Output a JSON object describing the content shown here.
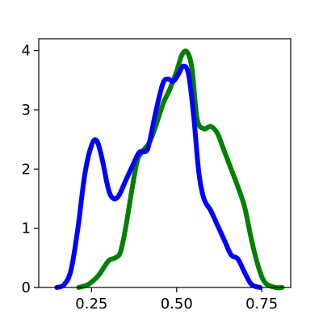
{
  "chart_data": {
    "type": "line",
    "title": "",
    "xlabel": "",
    "ylabel": "",
    "xlim": [
      0.095,
      0.835
    ],
    "ylim": [
      0,
      4.2
    ],
    "grid": false,
    "xticks": [
      {
        "value": 0.25,
        "label": "0.25"
      },
      {
        "value": 0.5,
        "label": "0.50"
      },
      {
        "value": 0.75,
        "label": "0.75"
      }
    ],
    "yticks": [
      {
        "value": 0,
        "label": "0"
      },
      {
        "value": 1,
        "label": "1"
      },
      {
        "value": 2,
        "label": "2"
      },
      {
        "value": 3,
        "label": "3"
      },
      {
        "value": 4,
        "label": "4"
      }
    ],
    "series": [
      {
        "color": "#008000",
        "x": [
          0.212,
          0.24,
          0.27,
          0.3,
          0.32,
          0.335,
          0.35,
          0.37,
          0.385,
          0.4,
          0.42,
          0.44,
          0.46,
          0.48,
          0.5,
          0.515,
          0.53,
          0.545,
          0.56,
          0.58,
          0.6,
          0.62,
          0.64,
          0.66,
          0.68,
          0.7,
          0.72,
          0.74,
          0.76,
          0.79,
          0.81
        ],
        "y": [
          0.0,
          0.05,
          0.2,
          0.45,
          0.5,
          0.6,
          1.0,
          1.7,
          2.15,
          2.3,
          2.45,
          2.75,
          3.1,
          3.35,
          3.65,
          3.92,
          3.98,
          3.7,
          2.85,
          2.68,
          2.72,
          2.6,
          2.3,
          2.0,
          1.7,
          1.35,
          0.8,
          0.35,
          0.08,
          0.0,
          0.0
        ]
      },
      {
        "color": "#0000ff",
        "x": [
          0.148,
          0.17,
          0.19,
          0.21,
          0.23,
          0.25,
          0.265,
          0.28,
          0.3,
          0.315,
          0.33,
          0.35,
          0.37,
          0.39,
          0.41,
          0.42,
          0.44,
          0.46,
          0.475,
          0.49,
          0.505,
          0.52,
          0.535,
          0.55,
          0.565,
          0.58,
          0.6,
          0.62,
          0.64,
          0.66,
          0.68,
          0.7,
          0.72,
          0.745
        ],
        "y": [
          0.0,
          0.05,
          0.3,
          1.0,
          1.9,
          2.4,
          2.48,
          2.2,
          1.65,
          1.5,
          1.55,
          1.8,
          2.05,
          2.28,
          2.3,
          2.45,
          3.0,
          3.45,
          3.52,
          3.48,
          3.6,
          3.74,
          3.6,
          2.9,
          1.95,
          1.5,
          1.3,
          1.05,
          0.8,
          0.55,
          0.48,
          0.25,
          0.05,
          0.0
        ]
      }
    ]
  }
}
